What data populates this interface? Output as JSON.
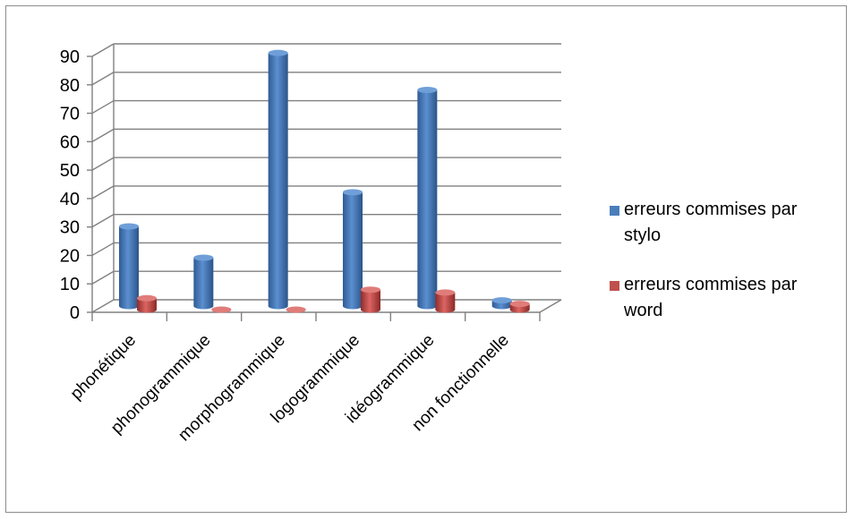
{
  "chart_data": {
    "type": "bar",
    "categories": [
      "phonétique",
      "phonogrammique",
      "morphogrammique",
      "logogrammique",
      "idéogrammique",
      "non fonctionnelle"
    ],
    "series": [
      {
        "name": "erreurs commises par stylo",
        "values": [
          28,
          17,
          89,
          40,
          76,
          2
        ],
        "color": "#4a7ebb"
      },
      {
        "name": "erreurs commises par word",
        "values": [
          4,
          0,
          0,
          7,
          6,
          2
        ],
        "color": "#c0504d"
      }
    ],
    "legend_lines": [
      [
        "erreurs commises par",
        "stylo"
      ],
      [
        "erreurs commises par",
        "word"
      ]
    ],
    "ylim": [
      0,
      90
    ],
    "yticks": [
      0,
      10,
      20,
      30,
      40,
      50,
      60,
      70,
      80,
      90
    ],
    "grid": true,
    "style": "3d-cylinder",
    "legend_position": "right"
  }
}
